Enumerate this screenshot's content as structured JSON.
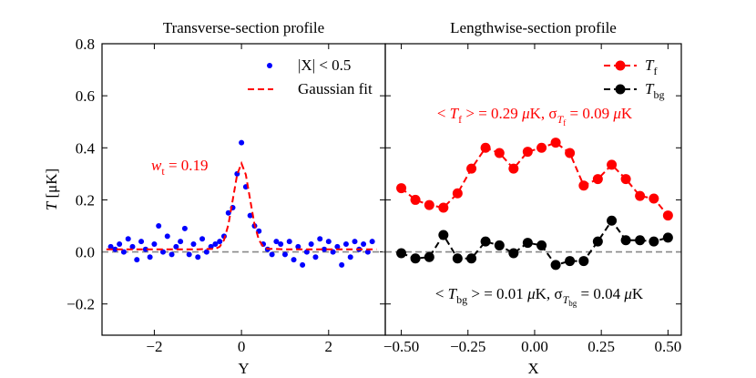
{
  "chart_data": [
    {
      "type": "scatter",
      "title": "Transverse-section profile",
      "xlabel": [
        {
          "t": "Y"
        }
      ],
      "ylabel": [
        {
          "t": "T",
          "style": "italic"
        },
        {
          "t": " [μK]"
        }
      ],
      "xlim": [
        -3.2,
        3.3
      ],
      "ylim": [
        -0.32,
        0.8
      ],
      "xticks": [
        {
          "value": -2,
          "label": "−2"
        },
        0,
        2
      ],
      "yticks": [
        {
          "value": -0.2,
          "label": "−0.2"
        },
        {
          "value": 0,
          "label": "0.0"
        },
        0.2,
        0.4,
        0.6,
        0.8
      ],
      "hline": 0,
      "legend": "upper right",
      "series": [
        {
          "name": [
            {
              "t": "|X| < 0.5"
            }
          ],
          "type": "scatter",
          "color": "#0000ff",
          "x": [
            -3.0,
            -2.9,
            -2.8,
            -2.7,
            -2.6,
            -2.5,
            -2.4,
            -2.3,
            -2.2,
            -2.1,
            -2.0,
            -1.9,
            -1.8,
            -1.7,
            -1.6,
            -1.5,
            -1.4,
            -1.3,
            -1.2,
            -1.1,
            -1.0,
            -0.9,
            -0.8,
            -0.7,
            -0.6,
            -0.5,
            -0.4,
            -0.3,
            -0.2,
            -0.1,
            0.0,
            0.1,
            0.2,
            0.3,
            0.4,
            0.5,
            0.6,
            0.7,
            0.8,
            0.9,
            1.0,
            1.1,
            1.2,
            1.3,
            1.4,
            1.5,
            1.6,
            1.7,
            1.8,
            1.9,
            2.0,
            2.1,
            2.2,
            2.3,
            2.4,
            2.5,
            2.6,
            2.7,
            2.8,
            2.9,
            3.0
          ],
          "values": [
            0.02,
            0.01,
            0.03,
            0.0,
            0.05,
            0.02,
            -0.03,
            0.04,
            0.01,
            -0.02,
            0.03,
            0.1,
            0.0,
            0.06,
            -0.01,
            0.02,
            0.04,
            0.09,
            -0.01,
            0.03,
            -0.02,
            0.05,
            0.0,
            0.02,
            0.03,
            0.04,
            0.06,
            0.15,
            0.17,
            0.3,
            0.42,
            0.25,
            0.14,
            0.1,
            0.08,
            0.03,
            0.01,
            -0.01,
            0.04,
            0.03,
            -0.01,
            0.04,
            -0.03,
            0.02,
            -0.05,
            0.0,
            0.03,
            -0.02,
            0.05,
            0.01,
            0.04,
            0.0,
            0.02,
            -0.05,
            0.03,
            -0.02,
            0.04,
            0.01,
            0.03,
            0.0,
            0.04
          ]
        },
        {
          "name": [
            {
              "t": "Gaussian fit"
            }
          ],
          "type": "line",
          "color": "#ff0000",
          "linestyle": "dashed",
          "x": [
            -3.1,
            -1,
            -0.6,
            -0.5,
            -0.4,
            -0.3,
            -0.2,
            -0.1,
            0,
            0.1,
            0.2,
            0.3,
            0.4,
            0.5,
            0.6,
            1,
            3.1
          ],
          "values": [
            0.01,
            0.01,
            0.012,
            0.02,
            0.046,
            0.105,
            0.2,
            0.297,
            0.34,
            0.297,
            0.2,
            0.105,
            0.046,
            0.02,
            0.012,
            0.01,
            0.01
          ]
        }
      ],
      "annotations": [
        {
          "color": "#ff0000",
          "parts": [
            {
              "t": "w",
              "style": "italic"
            },
            {
              "t": "t",
              "style": "sub"
            },
            {
              "t": " = 0.19"
            }
          ]
        }
      ]
    },
    {
      "type": "line",
      "title": "Lengthwise-section profile",
      "xlabel": [
        {
          "t": "X"
        }
      ],
      "xlim": [
        -0.56,
        0.55
      ],
      "ylim": [
        -0.32,
        0.8
      ],
      "sharey": true,
      "xticks": [
        {
          "value": -0.5,
          "label": "−0.50"
        },
        {
          "value": -0.25,
          "label": "−0.25"
        },
        {
          "value": 0,
          "label": "0.00"
        },
        0.25,
        {
          "value": 0.5,
          "label": "0.50"
        }
      ],
      "yticks": [
        -0.2,
        0,
        0.2,
        0.4,
        0.6,
        0.8
      ],
      "hline": 0,
      "legend": "upper right",
      "series": [
        {
          "name": [
            {
              "t": "T",
              "style": "italic"
            },
            {
              "t": "f",
              "style": "sub"
            }
          ],
          "color": "#ff0000",
          "linestyle": "dashed",
          "marker": "circle",
          "x": [
            -0.5,
            -0.447,
            -0.395,
            -0.342,
            -0.289,
            -0.237,
            -0.184,
            -0.132,
            -0.079,
            -0.026,
            0.026,
            0.079,
            0.132,
            0.184,
            0.237,
            0.289,
            0.342,
            0.395,
            0.447,
            0.5
          ],
          "values": [
            0.245,
            0.2,
            0.18,
            0.17,
            0.225,
            0.32,
            0.4,
            0.38,
            0.32,
            0.385,
            0.4,
            0.42,
            0.38,
            0.255,
            0.28,
            0.335,
            0.28,
            0.215,
            0.205,
            0.14
          ]
        },
        {
          "name": [
            {
              "t": "T",
              "style": "italic"
            },
            {
              "t": "bg",
              "style": "sub"
            }
          ],
          "color": "#000000",
          "linestyle": "dashed",
          "marker": "circle",
          "x": [
            -0.5,
            -0.447,
            -0.395,
            -0.342,
            -0.289,
            -0.237,
            -0.184,
            -0.132,
            -0.079,
            -0.026,
            0.026,
            0.079,
            0.132,
            0.184,
            0.237,
            0.289,
            0.342,
            0.395,
            0.447,
            0.5
          ],
          "values": [
            -0.005,
            -0.025,
            -0.02,
            0.065,
            -0.025,
            -0.025,
            0.04,
            0.025,
            -0.005,
            0.035,
            0.025,
            -0.05,
            -0.035,
            -0.035,
            0.04,
            0.12,
            0.045,
            0.045,
            0.04,
            0.055
          ]
        }
      ],
      "annotations": [
        {
          "color": "#ff0000",
          "parts": [
            {
              "t": "< "
            },
            {
              "t": "T",
              "style": "italic"
            },
            {
              "t": "f",
              "style": "sub"
            },
            {
              "t": " > = 0.29 "
            },
            {
              "t": "μ",
              "style": "italic"
            },
            {
              "t": "K, σ"
            },
            {
              "t": "T",
              "style": "sub-italic"
            },
            {
              "t": "f",
              "style": "subsub"
            },
            {
              "t": " = 0.09 "
            },
            {
              "t": "μ",
              "style": "italic"
            },
            {
              "t": "K"
            }
          ]
        },
        {
          "color": "#000000",
          "parts": [
            {
              "t": "< "
            },
            {
              "t": "T",
              "style": "italic"
            },
            {
              "t": "bg",
              "style": "sub"
            },
            {
              "t": " > = 0.01 "
            },
            {
              "t": "μ",
              "style": "italic"
            },
            {
              "t": "K, σ"
            },
            {
              "t": "T",
              "style": "sub-italic"
            },
            {
              "t": "bg",
              "style": "subsub"
            },
            {
              "t": " = 0.04 "
            },
            {
              "t": "μ",
              "style": "italic"
            },
            {
              "t": "K"
            }
          ]
        }
      ]
    }
  ]
}
